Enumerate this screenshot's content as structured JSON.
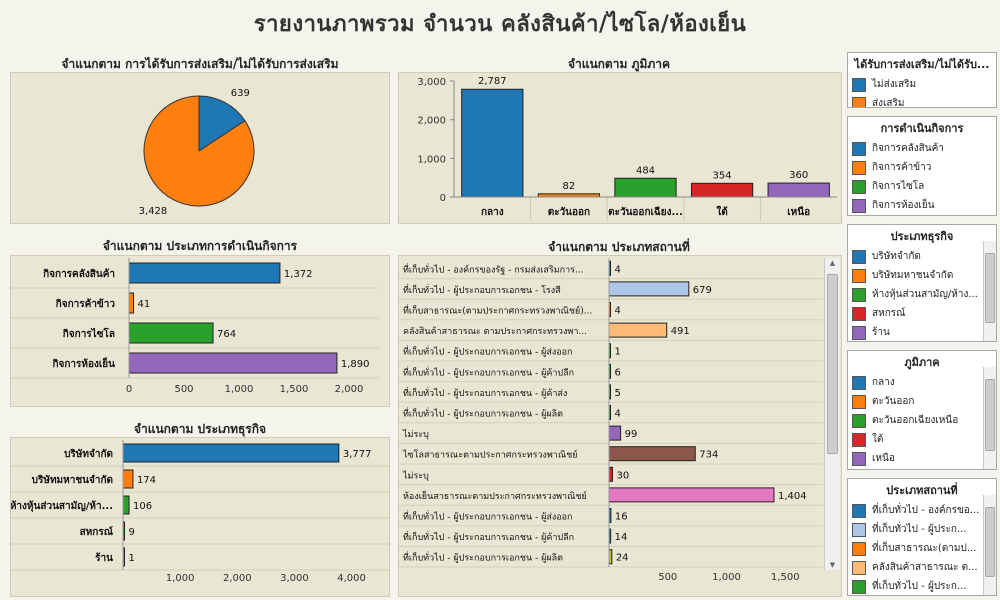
{
  "title": "รายงานภาพรวม จำนวน คลังสินค้า/ไซโล/ห้องเย็น",
  "colors": {
    "blue": "#1f77b4",
    "orange": "#ff7f0e",
    "green": "#2ca02c",
    "red": "#d62728",
    "purple": "#9467bd",
    "lightblue": "#aec7e8",
    "peach": "#ffbb78",
    "brown": "#8c564b",
    "pink": "#e377c2",
    "olive": "#bcbd22"
  },
  "chart_data": [
    {
      "id": "promotion",
      "type": "pie",
      "title": "จำแนกตาม การได้รับการส่งเสริม/ไม่ได้รับการส่งเสริม",
      "slices": [
        {
          "label": "ไม่ส่งเสริม",
          "value": 639,
          "color": "#1f77b4"
        },
        {
          "label": "ส่งเสริม",
          "value": 3428,
          "color": "#ff7f0e"
        }
      ]
    },
    {
      "id": "region",
      "type": "bar",
      "title": "จำแนกตาม ภูมิภาค",
      "categories": [
        "กลาง",
        "ตะวันออก",
        "ตะวันออกเฉียง...",
        "ใต้",
        "เหนือ"
      ],
      "values": [
        2787,
        82,
        484,
        354,
        360
      ],
      "colors": [
        "#1f77b4",
        "#ff7f0e",
        "#2ca02c",
        "#d62728",
        "#9467bd"
      ],
      "value_labels": [
        "2,787",
        "82",
        "484",
        "354",
        "360"
      ],
      "yticks": [
        "0",
        "1,000",
        "2,000",
        "3,000"
      ],
      "ylim": [
        0,
        3000
      ]
    },
    {
      "id": "operation",
      "type": "bar",
      "orientation": "horizontal",
      "title": "จำแนกตาม ประเภทการดำเนินกิจการ",
      "categories": [
        "กิจการคลังสินค้า",
        "กิจการค้าข้าว",
        "กิจการไซโล",
        "กิจการห้องเย็น"
      ],
      "values": [
        1372,
        41,
        764,
        1890
      ],
      "colors": [
        "#1f77b4",
        "#ff7f0e",
        "#2ca02c",
        "#9467bd"
      ],
      "value_labels": [
        "1,372",
        "41",
        "764",
        "1,890"
      ],
      "xticks": [
        "0",
        "500",
        "1,000",
        "1,500",
        "2,000"
      ],
      "xlim": [
        0,
        2000
      ]
    },
    {
      "id": "business",
      "type": "bar",
      "orientation": "horizontal",
      "title": "จำแนกตาม ประเภทธุรกิจ",
      "categories": [
        "บริษัทจำกัด",
        "บริษัทมหาชนจำกัด",
        "ห้างหุ้นส่วนสามัญ/ห้า...",
        "สหกรณ์",
        "ร้าน"
      ],
      "values": [
        3777,
        174,
        106,
        9,
        1
      ],
      "colors": [
        "#1f77b4",
        "#ff7f0e",
        "#2ca02c",
        "#d62728",
        "#9467bd"
      ],
      "value_labels": [
        "3,777",
        "174",
        "106",
        "9",
        "1"
      ],
      "xticks": [
        "1,000",
        "2,000",
        "3,000",
        "4,000"
      ],
      "xlim": [
        0,
        4200
      ]
    },
    {
      "id": "premise",
      "type": "bar",
      "orientation": "horizontal",
      "title": "จำแนกตาม ประเภทสถานที่",
      "categories": [
        "ที่เก็บทั่วไป - องค์กรของรัฐ - กรมส่งเสริมการ...",
        "ที่เก็บทั่วไป - ผู้ประกอบการเอกชน - โรงสี",
        "ที่เก็บสาธารณะ(ตามประกาศกระทรวงพาณิชย์)...",
        "คลังสินค้าสาธารณะ ตามประกาศกระทรวงพา...",
        "ที่เก็บทั่วไป - ผู้ประกอบการเอกชน - ผู้ส่งออก",
        "ที่เก็บทั่วไป - ผู้ประกอบการเอกชน - ผู้ค้าปลีก",
        "ที่เก็บทั่วไป - ผู้ประกอบการเอกชน - ผู้ค้าส่ง",
        "ที่เก็บทั่วไป - ผู้ประกอบการเอกชน - ผู้ผลิต",
        "ไม่ระบุ",
        "ไซโลสาธารณะตามประกาศกระทรวงพาณิชย์",
        "ไม่ระบุ",
        "ห้องเย็นสาธารณะตามประกาศกระทรวงพาณิชย์",
        "ที่เก็บทั่วไป - ผู้ประกอบการเอกชน - ผู้ส่งออก",
        "ที่เก็บทั่วไป - ผู้ประกอบการเอกชน - ผู้ค้าปลีก",
        "ที่เก็บทั่วไป - ผู้ประกอบการเอกชน - ผู้ผลิต"
      ],
      "values": [
        4,
        679,
        4,
        491,
        1,
        6,
        5,
        4,
        99,
        734,
        30,
        1404,
        16,
        14,
        24
      ],
      "colors": [
        "#1f77b4",
        "#aec7e8",
        "#ff7f0e",
        "#ffbb78",
        "#2ca02c",
        "#2ca02c",
        "#2ca02c",
        "#2ca02c",
        "#9467bd",
        "#8c564b",
        "#d62728",
        "#e377c2",
        "#1f77b4",
        "#1f77b4",
        "#bcbd22"
      ],
      "value_labels": [
        "4",
        "679",
        "4",
        "491",
        "1",
        "6",
        "5",
        "4",
        "99",
        "734",
        "30",
        "1,404",
        "16",
        "14",
        "24"
      ],
      "xticks": [
        "500",
        "1,000",
        "1,500"
      ],
      "xlim": [
        0,
        1600
      ]
    }
  ],
  "legends": [
    {
      "title": "ได้รับการส่งเสริม/ไม่ได้รับ...",
      "items": [
        {
          "label": "ไม่ส่งเสริม",
          "color": "#1f77b4"
        },
        {
          "label": "ส่งเสริม",
          "color": "#ff7f0e"
        }
      ]
    },
    {
      "title": "การดำเนินกิจการ",
      "items": [
        {
          "label": "กิจการคลังสินค้า",
          "color": "#1f77b4"
        },
        {
          "label": "กิจการค้าข้าว",
          "color": "#ff7f0e"
        },
        {
          "label": "กิจการไซโล",
          "color": "#2ca02c"
        },
        {
          "label": "กิจการห้องเย็น",
          "color": "#9467bd"
        }
      ]
    },
    {
      "title": "ประเภทธุรกิจ",
      "items": [
        {
          "label": "บริษัทจำกัด",
          "color": "#1f77b4"
        },
        {
          "label": "บริษัทมหาชนจำกัด",
          "color": "#ff7f0e"
        },
        {
          "label": "ห้างหุ้นส่วนสามัญ/ห้าง...",
          "color": "#2ca02c"
        },
        {
          "label": "สหกรณ์",
          "color": "#d62728"
        },
        {
          "label": "ร้าน",
          "color": "#9467bd"
        }
      ]
    },
    {
      "title": "ภูมิภาค",
      "items": [
        {
          "label": "กลาง",
          "color": "#1f77b4"
        },
        {
          "label": "ตะวันออก",
          "color": "#ff7f0e"
        },
        {
          "label": "ตะวันออกเฉียงเหนือ",
          "color": "#2ca02c"
        },
        {
          "label": "ใต้",
          "color": "#d62728"
        },
        {
          "label": "เหนือ",
          "color": "#9467bd"
        }
      ]
    },
    {
      "title": "ประเภทสถานที่",
      "items": [
        {
          "label": "ที่เก็บทั่วไป - องค์กรขอ...",
          "color": "#1f77b4"
        },
        {
          "label": "ที่เก็บทั่วไป - ผู้ประก...",
          "color": "#aec7e8"
        },
        {
          "label": "ที่เก็บสาธารณะ(ตามป...",
          "color": "#ff7f0e"
        },
        {
          "label": "คลังสินค้าสาธารณะ ต...",
          "color": "#ffbb78"
        },
        {
          "label": "ที่เก็บทั่วไป - ผู้ประก...",
          "color": "#2ca02c"
        }
      ]
    }
  ]
}
